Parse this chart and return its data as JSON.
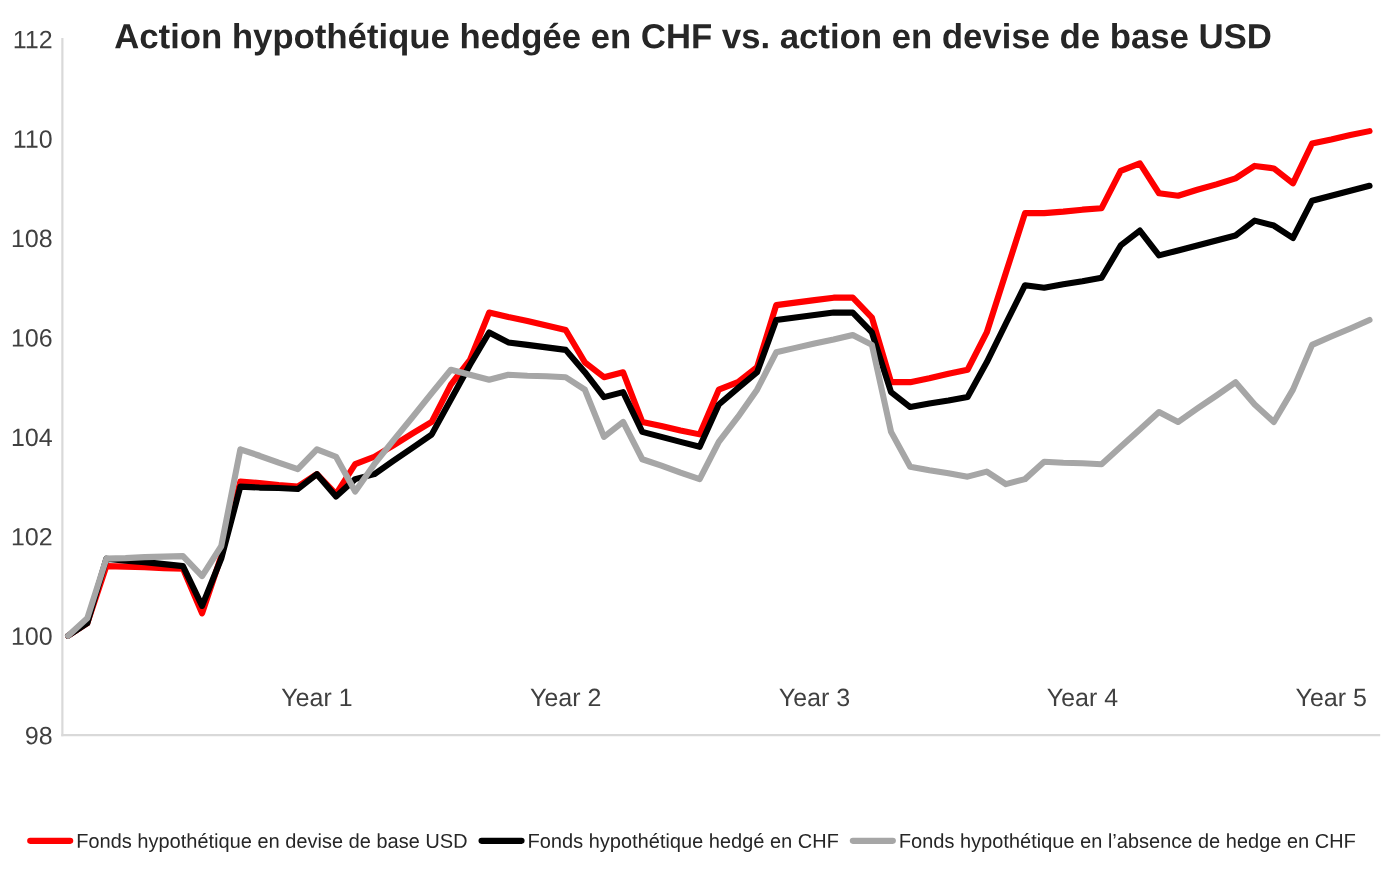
{
  "chart_data": {
    "type": "line",
    "title": "Action hypothétique hedgée en CHF vs. action en devise de base USD",
    "categories": [
      null,
      null,
      null,
      null,
      null,
      null,
      null,
      null,
      null,
      null,
      null,
      null,
      null,
      "Year 1",
      null,
      null,
      null,
      null,
      null,
      null,
      null,
      null,
      null,
      null,
      null,
      null,
      "Year 2",
      null,
      null,
      null,
      null,
      null,
      null,
      null,
      null,
      null,
      null,
      null,
      null,
      "Year 3",
      null,
      null,
      null,
      null,
      null,
      null,
      null,
      null,
      null,
      null,
      null,
      null,
      null,
      "Year 4",
      null,
      null,
      null,
      null,
      null,
      null,
      null,
      null,
      null,
      null,
      null,
      null,
      "Year 5",
      null,
      null
    ],
    "ylim": [
      98,
      112
    ],
    "yticks": [
      98,
      100,
      102,
      104,
      106,
      108,
      110,
      112
    ],
    "grid": false,
    "legend": "bottom",
    "marker": "none",
    "line_style": "solid",
    "series": [
      {
        "name": "Fonds hypothétique en devise de base USD",
        "color": "#ff0000",
        "values": [
          100.0,
          100.25,
          101.4,
          101.39,
          101.38,
          101.36,
          101.35,
          100.45,
          101.6,
          103.1,
          103.07,
          103.03,
          103.0,
          103.25,
          102.85,
          103.45,
          103.6,
          103.83,
          104.07,
          104.3,
          105.05,
          105.55,
          106.5,
          106.41,
          106.33,
          106.24,
          106.15,
          105.5,
          105.2,
          105.3,
          104.3,
          104.22,
          104.13,
          104.05,
          104.95,
          105.1,
          105.4,
          106.65,
          106.7,
          106.75,
          106.8,
          106.8,
          106.4,
          105.1,
          105.1,
          105.18,
          105.27,
          105.35,
          106.1,
          107.3,
          108.5,
          108.5,
          108.53,
          108.57,
          108.6,
          109.35,
          109.5,
          108.9,
          108.85,
          108.97,
          109.08,
          109.2,
          109.45,
          109.4,
          109.1,
          109.9,
          109.98,
          110.07,
          110.15
        ]
      },
      {
        "name": "Fonds hypothétique hedgé en CHF",
        "color": "#000000",
        "values": [
          100.0,
          100.25,
          101.55,
          101.51,
          101.48,
          101.44,
          101.4,
          100.6,
          101.55,
          103.0,
          102.98,
          102.97,
          102.95,
          103.25,
          102.8,
          103.15,
          103.25,
          103.52,
          103.78,
          104.05,
          104.75,
          105.45,
          106.1,
          105.9,
          105.85,
          105.8,
          105.75,
          105.3,
          104.8,
          104.9,
          104.1,
          104.0,
          103.9,
          103.8,
          104.65,
          104.98,
          105.3,
          106.35,
          106.4,
          106.45,
          106.5,
          106.5,
          106.1,
          104.9,
          104.6,
          104.67,
          104.73,
          104.8,
          105.5,
          106.28,
          107.05,
          107.0,
          107.07,
          107.13,
          107.2,
          107.85,
          108.15,
          107.65,
          107.75,
          107.85,
          107.95,
          108.05,
          108.35,
          108.25,
          108.0,
          108.75,
          108.85,
          108.95,
          109.05
        ]
      },
      {
        "name": "Fonds hypothétique en l’absence de hedge en CHF",
        "color": "#a6a6a6",
        "values": [
          100.0,
          100.35,
          101.55,
          101.56,
          101.58,
          101.59,
          101.6,
          101.2,
          101.8,
          103.75,
          103.62,
          103.48,
          103.35,
          103.75,
          103.6,
          102.9,
          103.45,
          103.93,
          104.4,
          104.88,
          105.35,
          105.25,
          105.15,
          105.25,
          105.23,
          105.22,
          105.2,
          104.95,
          104.0,
          104.3,
          103.55,
          103.42,
          103.28,
          103.15,
          103.9,
          104.4,
          104.95,
          105.7,
          105.79,
          105.88,
          105.96,
          106.05,
          105.85,
          104.1,
          103.4,
          103.33,
          103.27,
          103.2,
          103.3,
          103.05,
          103.15,
          103.5,
          103.48,
          103.47,
          103.45,
          103.8,
          104.15,
          104.5,
          104.3,
          104.57,
          104.83,
          105.1,
          104.65,
          104.3,
          104.95,
          105.85,
          106.02,
          106.18,
          106.35
        ]
      }
    ]
  }
}
